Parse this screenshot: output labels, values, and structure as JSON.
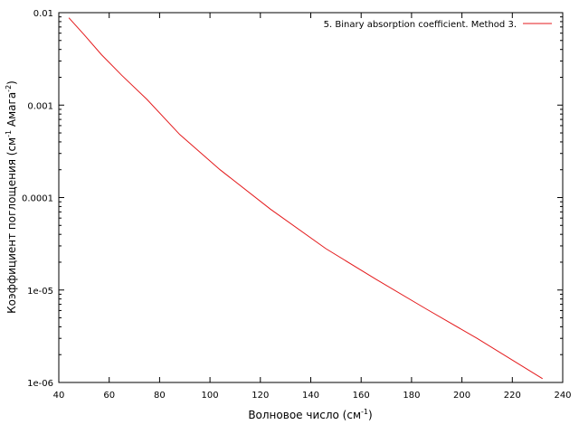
{
  "chart_data": {
    "type": "line",
    "x_scale": "linear",
    "y_scale": "log",
    "xlim": [
      40,
      240
    ],
    "ylim": [
      1e-06,
      0.01
    ],
    "x_ticks": [
      40,
      60,
      80,
      100,
      120,
      140,
      160,
      180,
      200,
      220,
      240
    ],
    "y_ticks": [
      {
        "value": 0.01,
        "label": "0.01"
      },
      {
        "value": 0.001,
        "label": "0.001"
      },
      {
        "value": 0.0001,
        "label": "0.0001"
      },
      {
        "value": 1e-05,
        "label": "1e-05"
      },
      {
        "value": 1e-06,
        "label": "1e-06"
      }
    ],
    "xlabel": {
      "base": "Волновое число (см",
      "sup": "-1",
      "end": ")"
    },
    "ylabel": {
      "base": "Коэффициент поглощения (см",
      "sup1": "-1",
      "mid": " Амага",
      "sup2": "-2",
      "end": ")"
    },
    "legend_position": "top-right",
    "grid": false,
    "series": [
      {
        "name": "5. Binary absorption coefficient. Method 3.",
        "color": "#e41a1c",
        "x": [
          44,
          50,
          57,
          65,
          75,
          88,
          104,
          124,
          146,
          166,
          186,
          206,
          232
        ],
        "y": [
          0.0088,
          0.0058,
          0.0035,
          0.0021,
          0.00115,
          0.00048,
          0.0002,
          7.5e-05,
          2.8e-05,
          1.3e-05,
          6.2e-06,
          3e-06,
          1.1e-06
        ]
      }
    ]
  }
}
